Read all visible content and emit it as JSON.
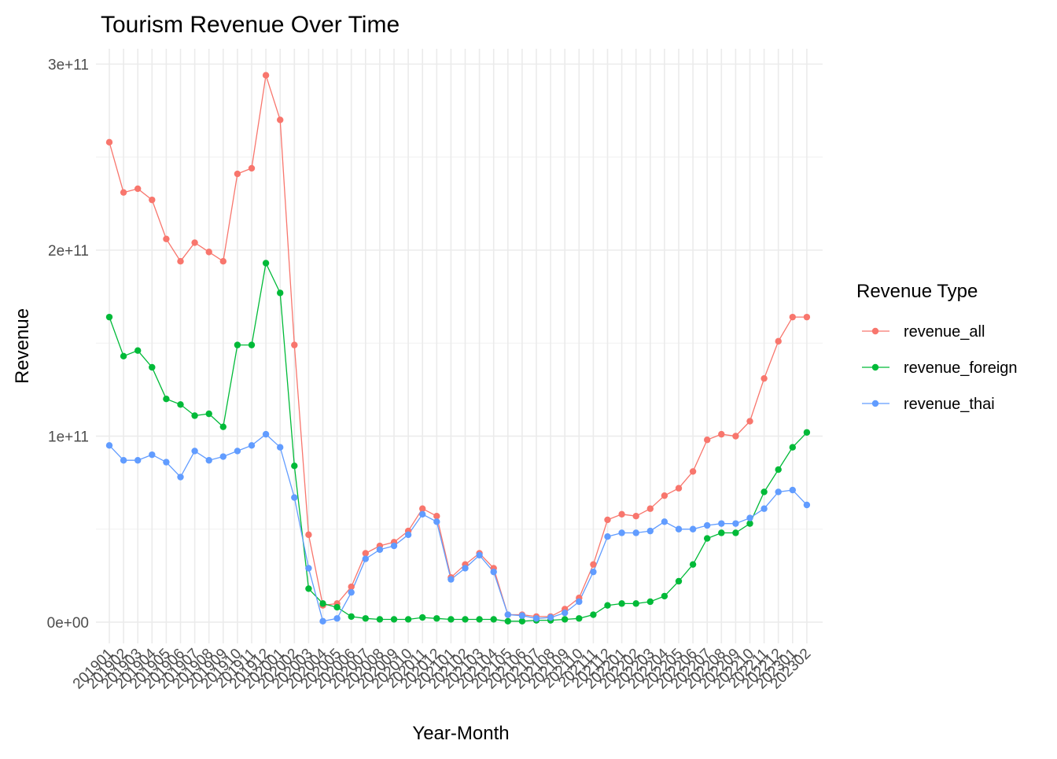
{
  "chart_data": {
    "type": "line",
    "title": "Tourism Revenue Over Time",
    "xlabel": "Year-Month",
    "ylabel": "Revenue",
    "ylim": [
      -10000000000,
      303000000000
    ],
    "y_ticks": [
      0,
      100000000000,
      200000000000,
      300000000000
    ],
    "y_tick_labels": [
      "0e+00",
      "1e+11",
      "2e+11",
      "3e+11"
    ],
    "grid": true,
    "legend": {
      "title": "Revenue Type",
      "position": "right"
    },
    "categories": [
      "201901",
      "201902",
      "201903",
      "201904",
      "201905",
      "201906",
      "201907",
      "201908",
      "201909",
      "201910",
      "201911",
      "201912",
      "202001",
      "202002",
      "202003",
      "202004",
      "202005",
      "202006",
      "202007",
      "202008",
      "202009",
      "202010",
      "202011",
      "202012",
      "202101",
      "202102",
      "202103",
      "202104",
      "202105",
      "202106",
      "202107",
      "202108",
      "202109",
      "202110",
      "202111",
      "202112",
      "202201",
      "202202",
      "202203",
      "202204",
      "202205",
      "202206",
      "202207",
      "202208",
      "202209",
      "202210",
      "202211",
      "202212",
      "202301",
      "202302"
    ],
    "series": [
      {
        "name": "revenue_all",
        "color": "#F8766D",
        "values": [
          258000000000,
          231000000000,
          233000000000,
          227000000000,
          206000000000,
          194000000000,
          204000000000,
          199000000000,
          194000000000,
          241000000000,
          244000000000,
          294000000000,
          270000000000,
          149000000000,
          47000000000,
          9000000000,
          10000000000,
          19000000000,
          37000000000,
          41000000000,
          43000000000,
          49000000000,
          61000000000,
          57000000000,
          24000000000,
          31000000000,
          37000000000,
          29000000000,
          4000000000,
          4000000000,
          3000000000,
          3000000000,
          7000000000,
          13000000000,
          31000000000,
          55000000000,
          58000000000,
          57000000000,
          61000000000,
          68000000000,
          72000000000,
          81000000000,
          98000000000,
          101000000000,
          100000000000,
          108000000000,
          131000000000,
          151000000000,
          164000000000,
          164000000000
        ]
      },
      {
        "name": "revenue_foreign",
        "color": "#00BA38",
        "values": [
          164000000000,
          143000000000,
          146000000000,
          137000000000,
          120000000000,
          117000000000,
          111000000000,
          112000000000,
          105000000000,
          149000000000,
          149000000000,
          193000000000,
          177000000000,
          84000000000,
          18000000000,
          10000000000,
          8000000000,
          3000000000,
          2000000000,
          1500000000,
          1500000000,
          1500000000,
          2500000000,
          2000000000,
          1500000000,
          1500000000,
          1500000000,
          1500000000,
          500000000,
          500000000,
          1000000000,
          1000000000,
          1500000000,
          2000000000,
          4000000000,
          9000000000,
          10000000000,
          10000000000,
          11000000000,
          14000000000,
          22000000000,
          31000000000,
          45000000000,
          48000000000,
          48000000000,
          53000000000,
          70000000000,
          82000000000,
          94000000000,
          102000000000
        ]
      },
      {
        "name": "revenue_thai",
        "color": "#619CFF",
        "values": [
          95000000000,
          87000000000,
          87000000000,
          90000000000,
          86000000000,
          78000000000,
          92000000000,
          87000000000,
          89000000000,
          92000000000,
          95000000000,
          101000000000,
          94000000000,
          67000000000,
          29000000000,
          500000000,
          2000000000,
          16000000000,
          34000000000,
          39000000000,
          41000000000,
          47000000000,
          58000000000,
          54000000000,
          23000000000,
          29000000000,
          36000000000,
          27000000000,
          4000000000,
          3500000000,
          2000000000,
          2500000000,
          5000000000,
          11000000000,
          27000000000,
          46000000000,
          48000000000,
          48000000000,
          49000000000,
          54000000000,
          50000000000,
          50000000000,
          52000000000,
          53000000000,
          53000000000,
          56000000000,
          61000000000,
          70000000000,
          71000000000,
          63000000000
        ]
      }
    ]
  }
}
